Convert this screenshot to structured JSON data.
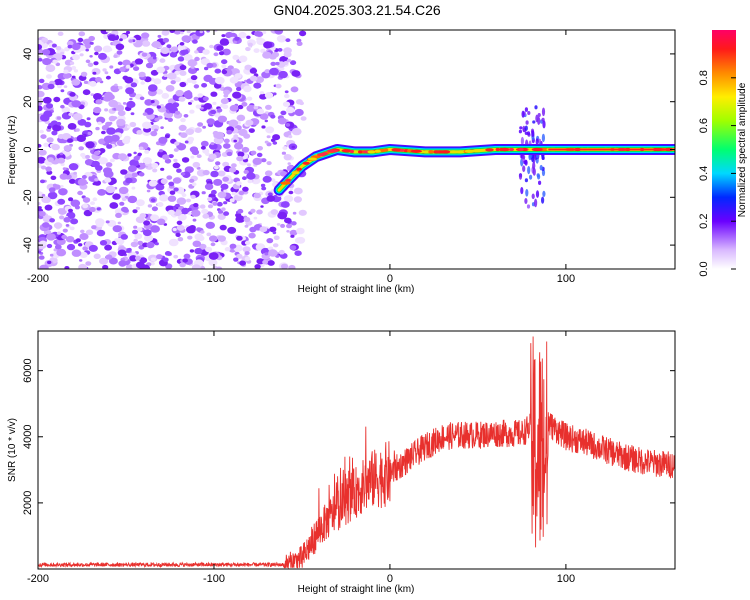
{
  "title": "GN04.2025.303.21.54.C26",
  "colorbar": {
    "label": "Normalized spectral amplitude",
    "ticks": [
      "0.0",
      "0.2",
      "0.4",
      "0.6",
      "0.8"
    ],
    "range": [
      0,
      1
    ]
  },
  "chart_data": [
    {
      "type": "heatmap",
      "name": "spectrogram",
      "xlabel": "Height of straight line (km)",
      "ylabel": "Frequency (Hz)",
      "xlim": [
        -200,
        162
      ],
      "ylim": [
        -50,
        50
      ],
      "xticks": [
        -200,
        -100,
        0,
        100
      ],
      "yticks": [
        -40,
        -20,
        0,
        20,
        40
      ],
      "xtick_labels": [
        "-200",
        "-100",
        "0",
        "100"
      ],
      "ytick_labels": [
        "-40",
        "-20",
        "0",
        "20",
        "40"
      ],
      "signal_track": {
        "x": [
          -63,
          -58,
          -50,
          -42,
          -30,
          -20,
          -10,
          0,
          20,
          40,
          60,
          75,
          82,
          88,
          100,
          130,
          162
        ],
        "y": [
          -17,
          -13,
          -7,
          -3,
          0,
          -1,
          -1,
          0,
          -1,
          -1,
          0,
          0,
          0,
          0,
          0,
          0,
          0
        ]
      },
      "noise_region_x": [
        -200,
        -55
      ],
      "burst_region": {
        "x": [
          74,
          88
        ],
        "y": [
          -25,
          20
        ]
      }
    },
    {
      "type": "line",
      "name": "snr",
      "xlabel": "Height of straight line (km)",
      "ylabel": "SNR (10 * v/v)",
      "xlim": [
        -200,
        162
      ],
      "ylim": [
        0,
        7200
      ],
      "xticks": [
        -200,
        -100,
        0,
        100
      ],
      "yticks": [
        2000,
        4000,
        6000
      ],
      "xtick_labels": [
        "-200",
        "-100",
        "0",
        "100"
      ],
      "ytick_labels": [
        "2000",
        "4000",
        "6000"
      ],
      "color": "#e8302d",
      "envelope": {
        "x": [
          -200,
          -60,
          -50,
          -40,
          -30,
          -20,
          -10,
          0,
          10,
          20,
          30,
          40,
          50,
          60,
          70,
          75,
          80,
          90,
          100,
          110,
          120,
          130,
          140,
          150,
          162
        ],
        "y": [
          130,
          130,
          300,
          1200,
          1800,
          2300,
          2700,
          2900,
          3300,
          3700,
          4000,
          4050,
          4050,
          4100,
          4100,
          4100,
          4300,
          4400,
          4000,
          3850,
          3650,
          3450,
          3300,
          3200,
          3150
        ]
      },
      "burst": {
        "x_range": [
          80,
          90
        ],
        "min": 100,
        "max": 7100
      }
    }
  ]
}
